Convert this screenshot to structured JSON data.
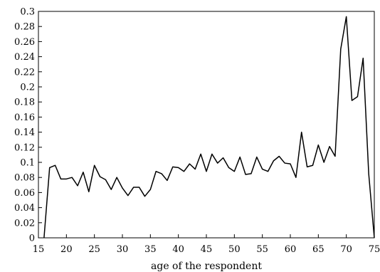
{
  "chart_data": {
    "type": "line",
    "title": "",
    "xlabel": "age of the respondent",
    "ylabel": "",
    "xlim": [
      15,
      75
    ],
    "ylim": [
      0,
      0.3
    ],
    "x_ticks": [
      15,
      20,
      25,
      30,
      35,
      40,
      45,
      50,
      55,
      60,
      65,
      70,
      75
    ],
    "x_tick_labels": [
      "15",
      "20",
      "25",
      "30",
      "35",
      "40",
      "45",
      "50",
      "55",
      "60",
      "65",
      "70",
      "75"
    ],
    "y_ticks": [
      0,
      0.02,
      0.04,
      0.06,
      0.08,
      0.1,
      0.12,
      0.14,
      0.16,
      0.18,
      0.2,
      0.22,
      0.24,
      0.26,
      0.28,
      0.3
    ],
    "y_tick_labels": [
      "0",
      "0.02",
      "0.04",
      "0.06",
      "0.08",
      "0.1",
      "0.12",
      "0.14",
      "0.16",
      "0.18",
      "0.2",
      "0.22",
      "0.24",
      "0.26",
      "0.28",
      "0.3"
    ],
    "grid": false,
    "legend": "none",
    "series": [
      {
        "color": "#000000",
        "x": [
          16,
          17,
          18,
          19,
          20,
          21,
          22,
          23,
          24,
          25,
          26,
          27,
          28,
          29,
          30,
          31,
          32,
          33,
          34,
          35,
          36,
          37,
          38,
          39,
          40,
          41,
          42,
          43,
          44,
          45,
          46,
          47,
          48,
          49,
          50,
          51,
          52,
          53,
          54,
          55,
          56,
          57,
          58,
          59,
          60,
          61,
          62,
          63,
          64,
          65,
          66,
          67,
          68,
          69,
          70,
          71,
          72,
          73,
          74,
          75
        ],
        "y": [
          0,
          0.093,
          0.096,
          0.078,
          0.078,
          0.08,
          0.069,
          0.087,
          0.061,
          0.096,
          0.081,
          0.077,
          0.064,
          0.08,
          0.066,
          0.056,
          0.067,
          0.067,
          0.055,
          0.064,
          0.088,
          0.085,
          0.076,
          0.094,
          0.093,
          0.088,
          0.098,
          0.091,
          0.111,
          0.088,
          0.111,
          0.099,
          0.106,
          0.093,
          0.088,
          0.107,
          0.084,
          0.085,
          0.107,
          0.091,
          0.088,
          0.102,
          0.108,
          0.099,
          0.098,
          0.08,
          0.14,
          0.094,
          0.096,
          0.123,
          0.1,
          0.121,
          0.108,
          0.25,
          0.293,
          0.182,
          0.187,
          0.238,
          0.085,
          0
        ]
      }
    ]
  }
}
